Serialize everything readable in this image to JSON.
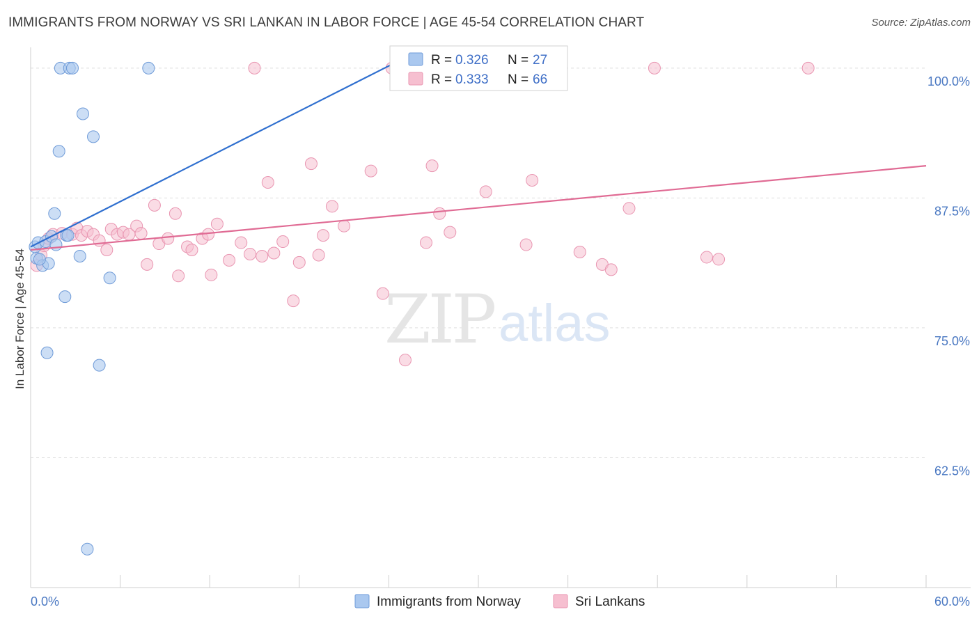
{
  "header": {
    "title": "IMMIGRANTS FROM NORWAY VS SRI LANKAN IN LABOR FORCE | AGE 45-54 CORRELATION CHART",
    "source": "Source: ZipAtlas.com"
  },
  "watermark": {
    "zip": "ZIP",
    "atlas": "atlas"
  },
  "colors": {
    "norway_fill": "#aac8ef",
    "norway_stroke": "#6f9bd8",
    "norway_line": "#2f6fcf",
    "srilanka_fill": "#f6bfd0",
    "srilanka_stroke": "#e995b1",
    "srilanka_line": "#e06b94",
    "tick_label": "#4a78c2",
    "grid": "#dddddd"
  },
  "legend": {
    "rows": [
      {
        "r_label": "R =",
        "r_value": "0.326",
        "n_label": "N =",
        "n_value": "27"
      },
      {
        "r_label": "R =",
        "r_value": "0.333",
        "n_label": "N =",
        "n_value": "66"
      }
    ]
  },
  "chart_data": {
    "type": "scatter",
    "xlabel": "",
    "ylabel": "In Labor Force | Age 45-54",
    "xlim": [
      0,
      60
    ],
    "ylim": [
      50,
      102
    ],
    "x_tick_labels": [
      "0.0%",
      "60.0%"
    ],
    "y_ticks": [
      62.5,
      75.0,
      87.5,
      100.0
    ],
    "y_tick_labels": [
      "62.5%",
      "75.0%",
      "87.5%",
      "100.0%"
    ],
    "grid": true,
    "legend_position": "top-center",
    "series": [
      {
        "name": "Immigrants from Norway",
        "trend": {
          "x0": 0.0,
          "y0": 82.8,
          "x1": 25.5,
          "y1": 101.3
        },
        "points": [
          [
            0.3,
            82.8
          ],
          [
            0.4,
            81.7
          ],
          [
            0.5,
            83.2
          ],
          [
            0.8,
            81.0
          ],
          [
            1.0,
            83.3
          ],
          [
            1.2,
            81.2
          ],
          [
            1.4,
            83.8
          ],
          [
            1.6,
            86.0
          ],
          [
            1.7,
            83.0
          ],
          [
            1.9,
            92.0
          ],
          [
            2.3,
            78.0
          ],
          [
            2.4,
            83.9
          ],
          [
            2.5,
            83.9
          ],
          [
            2.0,
            100.0
          ],
          [
            2.6,
            100.0
          ],
          [
            2.8,
            100.0
          ],
          [
            3.3,
            81.9
          ],
          [
            3.5,
            95.6
          ],
          [
            4.2,
            93.4
          ],
          [
            4.6,
            71.4
          ],
          [
            5.3,
            79.8
          ],
          [
            7.9,
            100.0
          ],
          [
            3.8,
            53.7
          ],
          [
            1.1,
            72.6
          ],
          [
            25.8,
            100.0
          ],
          [
            26.4,
            100.0
          ],
          [
            0.6,
            81.6
          ]
        ]
      },
      {
        "name": "Sri Lankans",
        "trend": {
          "x0": 0.0,
          "y0": 82.5,
          "x1": 60.0,
          "y1": 90.6
        },
        "points": [
          [
            0.4,
            81.0
          ],
          [
            0.7,
            82.0
          ],
          [
            0.9,
            82.9
          ],
          [
            1.2,
            83.6
          ],
          [
            1.5,
            84.0
          ],
          [
            2.1,
            84.1
          ],
          [
            2.8,
            84.0
          ],
          [
            3.1,
            84.6
          ],
          [
            3.4,
            83.9
          ],
          [
            3.8,
            84.3
          ],
          [
            4.2,
            84.0
          ],
          [
            4.6,
            83.4
          ],
          [
            5.1,
            82.5
          ],
          [
            5.4,
            84.5
          ],
          [
            5.8,
            84.0
          ],
          [
            6.2,
            84.2
          ],
          [
            6.6,
            84.0
          ],
          [
            7.1,
            84.8
          ],
          [
            7.4,
            84.1
          ],
          [
            7.8,
            81.1
          ],
          [
            8.3,
            86.8
          ],
          [
            8.6,
            83.1
          ],
          [
            9.2,
            83.6
          ],
          [
            9.7,
            86.0
          ],
          [
            9.9,
            80.0
          ],
          [
            10.5,
            82.8
          ],
          [
            10.8,
            82.5
          ],
          [
            11.5,
            83.6
          ],
          [
            11.9,
            84.0
          ],
          [
            12.1,
            80.1
          ],
          [
            12.5,
            85.0
          ],
          [
            13.3,
            81.5
          ],
          [
            14.1,
            83.2
          ],
          [
            14.7,
            82.1
          ],
          [
            15.0,
            100.0
          ],
          [
            15.5,
            81.9
          ],
          [
            15.9,
            89.0
          ],
          [
            16.3,
            82.2
          ],
          [
            16.9,
            83.3
          ],
          [
            17.6,
            77.6
          ],
          [
            18.0,
            81.3
          ],
          [
            18.8,
            90.8
          ],
          [
            19.3,
            82.0
          ],
          [
            19.6,
            83.9
          ],
          [
            20.2,
            86.7
          ],
          [
            21.0,
            84.8
          ],
          [
            22.8,
            90.1
          ],
          [
            23.6,
            78.3
          ],
          [
            24.2,
            100.0
          ],
          [
            25.1,
            71.9
          ],
          [
            26.5,
            83.2
          ],
          [
            26.9,
            90.6
          ],
          [
            27.4,
            86.0
          ],
          [
            28.1,
            84.2
          ],
          [
            30.5,
            88.1
          ],
          [
            31.8,
            100.0
          ],
          [
            33.2,
            83.0
          ],
          [
            33.6,
            89.2
          ],
          [
            36.8,
            82.3
          ],
          [
            38.3,
            81.1
          ],
          [
            38.9,
            80.6
          ],
          [
            40.1,
            86.5
          ],
          [
            41.8,
            100.0
          ],
          [
            45.3,
            81.8
          ],
          [
            46.1,
            81.6
          ],
          [
            52.1,
            100.0
          ]
        ]
      }
    ]
  }
}
